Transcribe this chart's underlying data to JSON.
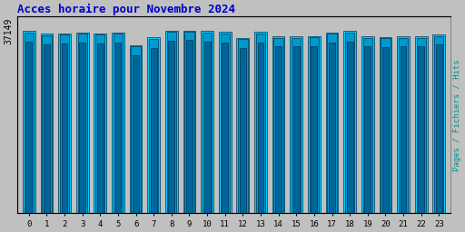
{
  "title": "Acces horaire pour Novembre 2024",
  "title_color": "#0000cc",
  "title_fontsize": 9,
  "hours": [
    0,
    1,
    2,
    3,
    4,
    5,
    6,
    7,
    8,
    9,
    10,
    11,
    12,
    13,
    14,
    15,
    16,
    17,
    18,
    19,
    20,
    21,
    22,
    23
  ],
  "hits": [
    37149,
    36500,
    36600,
    36800,
    36600,
    36800,
    34200,
    35800,
    37149,
    37149,
    37100,
    36900,
    35700,
    36900,
    36000,
    36000,
    36100,
    36800,
    37050,
    36000,
    35900,
    36000,
    36000,
    36400
  ],
  "fichiers": [
    36800,
    36200,
    36300,
    36500,
    36300,
    36500,
    33900,
    35500,
    36900,
    36900,
    36800,
    36600,
    35400,
    36600,
    35700,
    35700,
    35800,
    36500,
    36800,
    35700,
    35600,
    35700,
    35700,
    36100
  ],
  "pages": [
    35000,
    34400,
    34500,
    34700,
    34500,
    34700,
    32100,
    33700,
    35100,
    35200,
    35000,
    34800,
    33600,
    34800,
    33900,
    33900,
    34000,
    34700,
    35000,
    33900,
    33800,
    33900,
    33900,
    34300
  ],
  "color_hits": "#00ccff",
  "color_fichiers": "#0099cc",
  "color_pages": "#006699",
  "background_color": "#c0c0c0",
  "plot_bg_color": "#c0c0c0",
  "ylabel_right": "Pages / Fichiers / Hits",
  "ylabel_right_color": "#009090",
  "ylim": [
    0,
    40000
  ],
  "bar_width": 0.7,
  "edge_color": "#003355",
  "border_color": "#888888"
}
